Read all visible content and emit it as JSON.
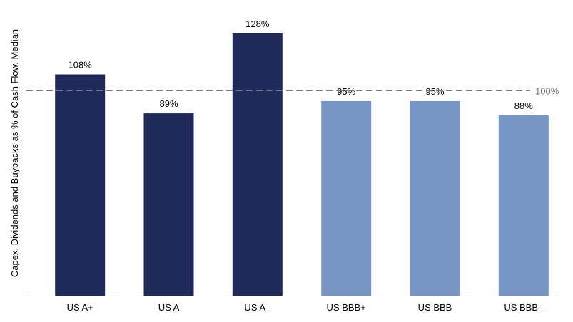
{
  "chart_data": {
    "type": "bar",
    "categories": [
      "US A+",
      "US A",
      "US A–",
      "US BBB+",
      "US BBB",
      "US BBB–"
    ],
    "values": [
      108,
      89,
      128,
      95,
      95,
      88
    ],
    "data_labels": [
      "108%",
      "89%",
      "128%",
      "95%",
      "95%",
      "88%"
    ],
    "bar_colors": [
      "#1f2a5a",
      "#1f2a5a",
      "#1f2a5a",
      "#7896c5",
      "#7896c5",
      "#7896c5"
    ],
    "title": "",
    "xlabel": "",
    "ylabel": "Capex, Dividends and Buybacks as % of  Cash Flow, Median",
    "ylim": [
      0,
      136
    ],
    "reference_line": {
      "value": 100,
      "label": "100%",
      "style": "dashed",
      "color": "#7a7a7a"
    },
    "grid": false,
    "legend": "none"
  }
}
